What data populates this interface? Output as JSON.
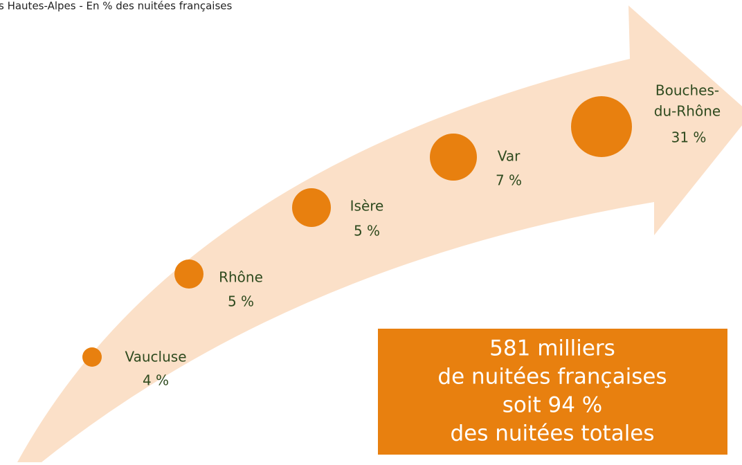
{
  "header": {
    "title": "s Hautes-Alpes - En % des nuitées françaises"
  },
  "items": [
    {
      "name": [
        "Vaucluse"
      ],
      "share": "4 %"
    },
    {
      "name": [
        "Rhône"
      ],
      "share": "5 %"
    },
    {
      "name": [
        "Isère"
      ],
      "share": "5 %"
    },
    {
      "name": [
        "Var"
      ],
      "share": "7 %"
    },
    {
      "name": [
        "Bouches-",
        "du-Rhône"
      ],
      "share": "31 %"
    }
  ],
  "summary": {
    "lines": [
      "581 milliers",
      "de nuitées françaises",
      "soit  94 %",
      "des nuitées totales"
    ]
  }
}
